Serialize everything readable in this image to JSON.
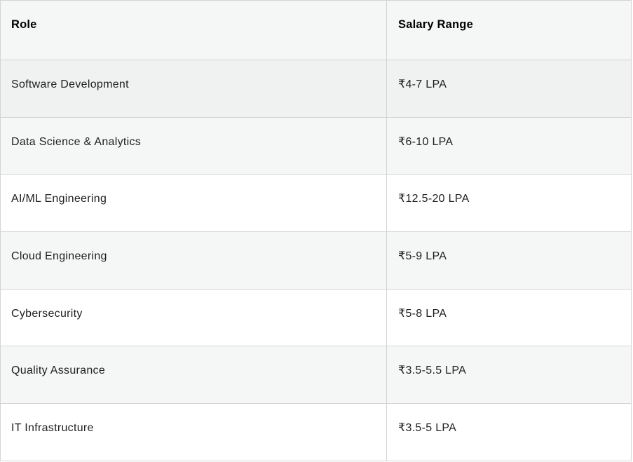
{
  "table": {
    "columns": [
      {
        "label": "Role"
      },
      {
        "label": "Salary Range"
      }
    ],
    "rows": [
      {
        "role": "Software Development",
        "salary": "₹4-7 LPA",
        "bg": "#f0f1f1"
      },
      {
        "role": "Data Science & Analytics",
        "salary": "₹6-10 LPA",
        "bg": "#f5f6f6"
      },
      {
        "role": "AI/ML Engineering",
        "salary": "₹12.5-20 LPA",
        "bg": "#ffffff"
      },
      {
        "role": "Cloud Engineering",
        "salary": "₹5-9 LPA",
        "bg": "#f5f6f6"
      },
      {
        "role": "Cybersecurity",
        "salary": "₹5-8 LPA",
        "bg": "#ffffff"
      },
      {
        "role": "Quality Assurance",
        "salary": "₹3.5-5.5 LPA",
        "bg": "#f5f6f6"
      },
      {
        "role": "IT Infrastructure",
        "salary": "₹3.5-5 LPA",
        "bg": "#ffffff"
      }
    ]
  },
  "colors": {
    "border": "#d4d4d4",
    "header_bg": "#f5f6f6",
    "stripe_bg": "#f5f6f6",
    "hover_row_bg": "#f0f1f1",
    "header_text": "#000000",
    "body_text": "#1f1f1f"
  }
}
